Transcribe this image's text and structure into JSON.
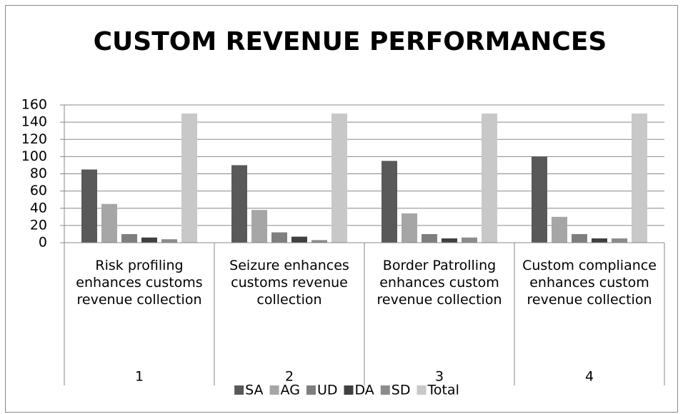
{
  "chart_data": {
    "type": "bar",
    "title": "CUSTOM REVENUE PERFORMANCES",
    "categories": [
      "Risk profiling enhances customs revenue collection",
      "Seizure enhances customs revenue collection",
      "Border Patrolling enhances custom revenue collection",
      "Custom compliance enhances custom revenue collection"
    ],
    "category_groups": [
      "1",
      "2",
      "3",
      "4"
    ],
    "series": [
      {
        "name": "SA",
        "color": "#595959",
        "values": [
          85,
          90,
          95,
          100
        ]
      },
      {
        "name": "AG",
        "color": "#a6a6a6",
        "values": [
          45,
          38,
          34,
          30
        ]
      },
      {
        "name": "UD",
        "color": "#7f7f7f",
        "values": [
          10,
          12,
          10,
          10
        ]
      },
      {
        "name": "DA",
        "color": "#404040",
        "values": [
          6,
          7,
          5,
          5
        ]
      },
      {
        "name": "SD",
        "color": "#8c8c8c",
        "values": [
          4,
          3,
          6,
          5
        ]
      },
      {
        "name": "Total",
        "color": "#c8c8c8",
        "values": [
          150,
          150,
          150,
          150
        ]
      }
    ],
    "ylim": [
      0,
      160
    ],
    "yticks": [
      0,
      20,
      40,
      60,
      80,
      100,
      120,
      140,
      160
    ],
    "grid": true,
    "legend": "bottom"
  }
}
